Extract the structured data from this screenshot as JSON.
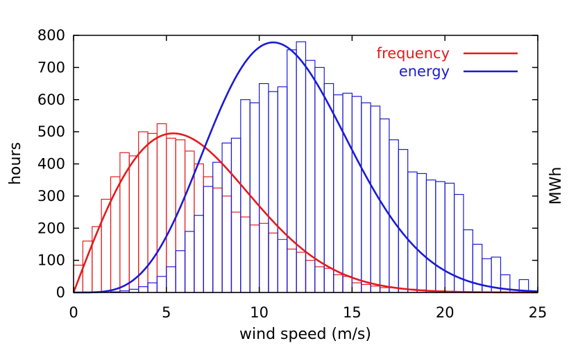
{
  "chart_data": {
    "type": "bar",
    "xlabel": "wind speed (m/s)",
    "ylabel": "hours",
    "y2label": "MWh",
    "xlim": [
      0,
      25
    ],
    "ylim": [
      0,
      800
    ],
    "x_ticks": [
      0,
      5,
      10,
      15,
      20,
      25
    ],
    "y_ticks": [
      0,
      100,
      200,
      300,
      400,
      500,
      600,
      700,
      800
    ],
    "grid": false,
    "legend_position": "top-right",
    "bin_width": 0.5,
    "bin_start": 0,
    "series": [
      {
        "name": "frequency",
        "color": "#e41a1c",
        "histogram": [
          85,
          160,
          205,
          290,
          360,
          435,
          425,
          500,
          495,
          525,
          480,
          475,
          440,
          400,
          360,
          325,
          300,
          250,
          235,
          210,
          215,
          185,
          165,
          135,
          125,
          100,
          80,
          75,
          55,
          50,
          30,
          25,
          20,
          15,
          15,
          12,
          10,
          8,
          6,
          5,
          4,
          3,
          2,
          2,
          1,
          1,
          0,
          0,
          0,
          0
        ],
        "curve": "Weibull fit, peak about 495 at 5.4 m/s"
      },
      {
        "name": "energy",
        "color": "#1a1ad6",
        "histogram": [
          0,
          0,
          0,
          0,
          2,
          5,
          10,
          18,
          30,
          50,
          80,
          130,
          190,
          240,
          330,
          405,
          465,
          480,
          600,
          590,
          650,
          625,
          640,
          755,
          780,
          722,
          700,
          650,
          615,
          620,
          610,
          590,
          580,
          540,
          475,
          445,
          375,
          370,
          350,
          345,
          340,
          305,
          195,
          150,
          105,
          110,
          55,
          0,
          40,
          0
        ],
        "curve": "fit, peak about 778 at 10.9 m/s"
      }
    ]
  }
}
